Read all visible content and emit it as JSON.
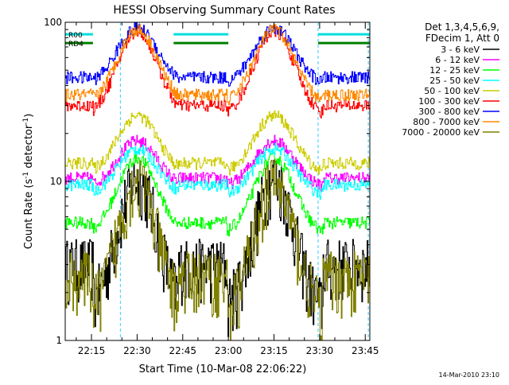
{
  "chart_data": {
    "type": "line",
    "title": "HESSI Observing Summary Count Rates",
    "xlabel": "Start Time (10-Mar-08 22:06:22)",
    "ylabel_main": "Count Rate (s",
    "ylabel_sup1": "-1",
    "ylabel_mid": " detector",
    "ylabel_sup2": "-1",
    "ylabel_end": ")",
    "y_scale": "log",
    "ylim": [
      1,
      100
    ],
    "x_unit": "minutes since 22:00",
    "xlim": [
      6.37,
      106.5
    ],
    "x_ticks": [
      {
        "value": 15,
        "label": "22:15"
      },
      {
        "value": 30,
        "label": "22:30"
      },
      {
        "value": 45,
        "label": "22:45"
      },
      {
        "value": 60,
        "label": "23:00"
      },
      {
        "value": 75,
        "label": "23:15"
      },
      {
        "value": 90,
        "label": "23:30"
      },
      {
        "value": 105,
        "label": "23:45"
      }
    ],
    "y_ticks": [
      {
        "value": 1,
        "label": "1"
      },
      {
        "value": 10,
        "label": "10"
      },
      {
        "value": 100,
        "label": "100"
      }
    ],
    "timestamp": "14-Mar-2010 23:10",
    "legend_header": [
      "Det 1,3,4,5,6,9,",
      "FDecim 1, Att 0"
    ],
    "legend_position": "right",
    "colors": {
      "3 - 6 keV": "#000000",
      "6 - 12 keV": "#ff00ff",
      "12 - 25 keV": "#00ff00",
      "25 - 50 keV": "#00ffff",
      "50 - 100 keV": "#cccc00",
      "100 - 300 keV": "#ff0000",
      "300 - 800 keV": "#0000ff",
      "800 - 7000 keV": "#ff8800",
      "7000 - 20000 keV": "#808000"
    },
    "series": [
      {
        "name": "3 - 6 keV",
        "color": "#000000",
        "night": 3,
        "peak": 10.5,
        "floor": 1.5
      },
      {
        "name": "6 - 12 keV",
        "color": "#ff00ff",
        "night": 10.5,
        "peak": 18,
        "floor": 9
      },
      {
        "name": "12 - 25 keV",
        "color": "#00ff00",
        "night": 5.5,
        "peak": 14,
        "floor": 4.5
      },
      {
        "name": "25 - 50 keV",
        "color": "#00ffff",
        "night": 9.5,
        "peak": 16,
        "floor": 8
      },
      {
        "name": "50 - 100 keV",
        "color": "#cccc00",
        "night": 13,
        "peak": 26,
        "floor": 11
      },
      {
        "name": "100 - 300 keV",
        "color": "#ff0000",
        "night": 30,
        "peak": 88,
        "floor": 25
      },
      {
        "name": "300 - 800 keV",
        "color": "#0000ff",
        "night": 45,
        "peak": 92,
        "floor": 40
      },
      {
        "name": "800 - 7000 keV",
        "color": "#ff8800",
        "night": 35,
        "peak": 90,
        "floor": 30
      },
      {
        "name": "7000 - 20000 keV",
        "color": "#808000",
        "night": 2.5,
        "peak": 10,
        "floor": 1.4
      }
    ],
    "flags": [
      {
        "label": "R00",
        "color": "#00dddd",
        "level": 84
      },
      {
        "label": "RD4",
        "color": "#008000",
        "level": 74
      }
    ],
    "saa_intervals": [
      [
        6.37,
        15.5
      ],
      [
        42,
        60
      ],
      [
        89.5,
        106.5
      ]
    ],
    "night_intervals": [
      [
        6.37,
        15.5
      ],
      [
        43.5,
        59.5
      ],
      [
        91,
        106.5
      ]
    ],
    "peak_centers": [
      30,
      75
    ],
    "dashed_lines": [
      24.5,
      89.5,
      106
    ]
  }
}
